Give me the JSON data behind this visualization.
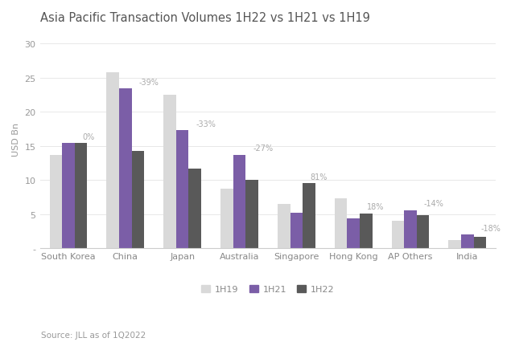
{
  "title": "Asia Pacific Transaction Volumes 1H22 vs 1H21 vs 1H19",
  "ylabel": "USD Bn",
  "source": "Source: JLL as of 1Q2022",
  "categories": [
    "South Korea",
    "China",
    "Japan",
    "Australia",
    "Singapore",
    "Hong Kong",
    "AP Others",
    "India"
  ],
  "series": {
    "1H19": [
      13.7,
      25.8,
      22.5,
      8.7,
      6.5,
      7.3,
      4.0,
      1.2
    ],
    "1H21": [
      15.4,
      23.4,
      17.3,
      13.7,
      5.2,
      4.4,
      5.6,
      2.0
    ],
    "1H22": [
      15.4,
      14.3,
      11.7,
      10.0,
      9.5,
      5.1,
      4.8,
      1.7
    ]
  },
  "colors": {
    "1H19": "#d9d9d9",
    "1H21": "#7b5ea7",
    "1H22": "#595959"
  },
  "annotations": {
    "South Korea": "0%",
    "China": "-39%",
    "Japan": "-33%",
    "Australia": "-27%",
    "Singapore": "81%",
    "Hong Kong": "18%",
    "AP Others": "-14%",
    "India": "-18%"
  },
  "ylim": [
    0,
    32
  ],
  "yticks": [
    0,
    5,
    10,
    15,
    20,
    25,
    30
  ],
  "background_color": "#ffffff",
  "bar_width": 0.22,
  "figsize": [
    6.4,
    4.27
  ],
  "dpi": 100
}
